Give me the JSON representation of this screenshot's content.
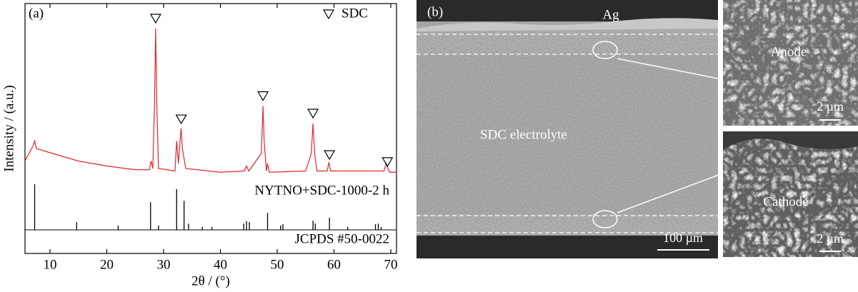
{
  "chart_data": {
    "type": "line",
    "panel_label": "(a)",
    "ylabel": "Intensity / (a.u.)",
    "xlabel": "2θ / (°)",
    "xlim": [
      5.6,
      71
    ],
    "ylim": [
      0,
      100
    ],
    "xticks": [
      10,
      20,
      30,
      40,
      50,
      60,
      70
    ],
    "series": [
      {
        "name": "NYTNO+SDC-1000-2 h",
        "color": "#e0262b",
        "x": [
          5.6,
          7.0,
          7.3,
          7.6,
          9,
          12,
          15,
          20,
          25,
          27.5,
          27.8,
          28.1,
          28.4,
          28.6,
          28.8,
          29.1,
          32.0,
          32.3,
          32.6,
          33.0,
          33.1,
          33.3,
          33.6,
          33.9,
          40,
          44.2,
          44.6,
          45,
          47.2,
          47.5,
          47.7,
          48.1,
          48.3,
          48.6,
          55,
          56.0,
          56.3,
          56.6,
          57,
          58.8,
          59.1,
          59.4,
          68.8,
          69.2,
          69.4,
          69.8,
          71
        ],
        "values": [
          37,
          43,
          45,
          42,
          41,
          39,
          37,
          35,
          33.5,
          33.5,
          37,
          34,
          60,
          90,
          60,
          34,
          33,
          45,
          36,
          48,
          50,
          42,
          38,
          34,
          32.5,
          33,
          35,
          33,
          40,
          59,
          45,
          33,
          36,
          32.5,
          33,
          40,
          52,
          40,
          33,
          33,
          36.5,
          33,
          33,
          36,
          34.5,
          32.5,
          32.5
        ]
      }
    ],
    "markers": {
      "name": "SDC",
      "x": [
        28.6,
        33.1,
        47.5,
        56.3,
        59.2,
        69.4
      ],
      "y": [
        94,
        53.7,
        63,
        56,
        39.4,
        36.6
      ]
    },
    "reference": {
      "name": "JCPDS #50-0022",
      "ylim": [
        0,
        100
      ],
      "x": [
        7.3,
        14.7,
        22.0,
        27.7,
        29.1,
        32.3,
        33.6,
        34.4,
        36.8,
        38.5,
        44.1,
        44.6,
        45.1,
        48.3,
        50.6,
        51.0,
        56.3,
        56.7,
        59.2,
        62.4,
        67.3,
        67.8,
        68.3
      ],
      "values": [
        94,
        16,
        9,
        57,
        9,
        84,
        60,
        13,
        6,
        6,
        13,
        18,
        16,
        35,
        9,
        12,
        19,
        13,
        25,
        6,
        12,
        13,
        6
      ]
    }
  },
  "images": {
    "panel_label": "(b)",
    "top_layer": "Ag",
    "middle": "SDC electrolyte",
    "scale_main": "100 µm",
    "inset_top": "Anode",
    "scale_top": "2 µm",
    "inset_bottom": "Cathode",
    "scale_bottom": "2 µm"
  }
}
